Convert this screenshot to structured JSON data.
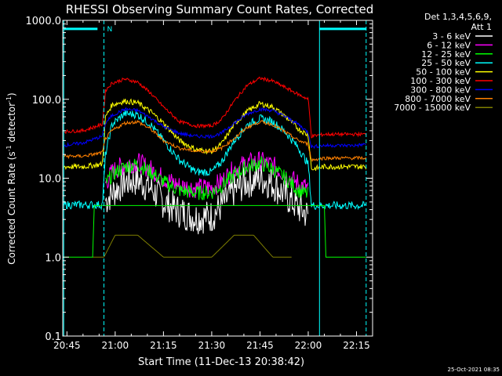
{
  "chart_data": {
    "type": "line",
    "title": "RHESSI Observing Summary Count Rates, Corrected",
    "xlabel": "Start Time (11-Dec-13 20:38:42)",
    "ylabel_main": "Corrected Count Rate (s",
    "ylabel_sup": "-1",
    "ylabel_mid": " detector",
    "ylabel_sup2": "-1",
    "ylabel_end": ")",
    "yscale": "log",
    "ylim": [
      0.1,
      1000
    ],
    "xlim_minutes": [
      -1.3,
      95
    ],
    "xticks": [
      {
        "label": "20:45",
        "min": 0
      },
      {
        "label": "21:00",
        "min": 15
      },
      {
        "label": "21:15",
        "min": 30
      },
      {
        "label": "21:30",
        "min": 45
      },
      {
        "label": "21:45",
        "min": 60
      },
      {
        "label": "22:00",
        "min": 75
      },
      {
        "label": "22:15",
        "min": 90
      }
    ],
    "yticks": [
      {
        "label": "0.1",
        "value": 0.1
      },
      {
        "label": "1.0",
        "value": 1
      },
      {
        "label": "10.0",
        "value": 10
      },
      {
        "label": "100.0",
        "value": 100
      },
      {
        "label": "1000.0",
        "value": 1000
      }
    ],
    "legend_header": [
      "Det 1,3,4,5,6,9,",
      "Att 1"
    ],
    "legend_position": "right",
    "timestamp": "25-Oct-2021 08:35",
    "annotation": "N",
    "series": [
      {
        "name": "3 - 6 keV",
        "color": "#ffffff",
        "x": [
          12,
          14,
          18,
          22,
          26,
          30,
          35,
          40,
          45,
          48,
          52,
          56,
          60,
          64,
          68,
          72,
          75
        ],
        "y": [
          5.2,
          6.5,
          9,
          9.5,
          7.5,
          5.0,
          3.8,
          3.2,
          3.3,
          4.5,
          7,
          9,
          10,
          8.5,
          6,
          4.2,
          3.4
        ]
      },
      {
        "name": "6 - 12 keV",
        "color": "#ff00ff",
        "x": [
          12,
          14,
          18,
          22,
          26,
          30,
          35,
          40,
          45,
          48,
          52,
          56,
          60,
          64,
          68,
          72,
          75
        ],
        "y": [
          8.5,
          12,
          15,
          16,
          13,
          10,
          8,
          7.5,
          7.6,
          9,
          13,
          15.5,
          16.5,
          14.5,
          11,
          8.5,
          7.5
        ]
      },
      {
        "name": "12 - 25 keV",
        "color": "#00ff00",
        "x": [
          12,
          14,
          18,
          22,
          26,
          30,
          35,
          40,
          45,
          48,
          52,
          56,
          60,
          64,
          68,
          72,
          75
        ],
        "y": [
          8.5,
          11,
          14,
          15,
          12,
          9,
          7,
          6.5,
          6.6,
          8,
          11,
          14,
          15.5,
          13,
          10,
          7,
          6.2
        ]
      },
      {
        "name": "25 - 50 keV",
        "color": "#00ffff",
        "x": [
          -1,
          5,
          11,
          12,
          14,
          18,
          22,
          26,
          30,
          35,
          40,
          45,
          48,
          52,
          56,
          60,
          64,
          68,
          72,
          75,
          76,
          80,
          90,
          93
        ],
        "y": [
          4.6,
          4.6,
          4.6,
          20,
          48,
          66,
          64,
          48,
          30,
          17,
          12,
          12,
          16,
          30,
          47,
          57,
          52,
          38,
          24,
          15,
          4.5,
          4.5,
          4.5,
          4.5
        ]
      },
      {
        "name": "50 - 100 keV",
        "color": "#ffff00",
        "x": [
          -1,
          5,
          11,
          12,
          14,
          18,
          22,
          26,
          30,
          35,
          40,
          45,
          48,
          52,
          56,
          60,
          64,
          68,
          72,
          75,
          76,
          80,
          90,
          93
        ],
        "y": [
          14,
          14,
          15,
          60,
          85,
          95,
          90,
          70,
          50,
          30,
          23,
          22,
          27,
          48,
          70,
          88,
          80,
          60,
          42,
          35,
          13,
          14,
          14,
          14
        ]
      },
      {
        "name": "100 - 300 keV",
        "color": "#ff0000",
        "x": [
          -1,
          5,
          11,
          12,
          14,
          18,
          22,
          26,
          30,
          35,
          40,
          45,
          48,
          52,
          56,
          60,
          64,
          68,
          72,
          75,
          76,
          80,
          90,
          93
        ],
        "y": [
          39,
          40,
          48,
          130,
          160,
          180,
          165,
          120,
          80,
          52,
          46,
          46,
          55,
          95,
          150,
          185,
          170,
          140,
          115,
          100,
          34,
          36,
          36,
          36
        ]
      },
      {
        "name": "300 - 800 keV",
        "color": "#0000ff",
        "x": [
          -1,
          5,
          11,
          12,
          14,
          18,
          22,
          26,
          30,
          35,
          40,
          45,
          48,
          52,
          56,
          60,
          64,
          68,
          72,
          75,
          76,
          80,
          90,
          93
        ],
        "y": [
          26,
          28,
          34,
          50,
          62,
          75,
          72,
          58,
          45,
          37,
          34,
          34,
          37,
          50,
          65,
          75,
          72,
          60,
          48,
          38,
          25,
          26,
          26,
          27
        ]
      },
      {
        "name": "800 - 7000 keV",
        "color": "#ff8000",
        "x": [
          -1,
          5,
          11,
          12,
          14,
          18,
          22,
          26,
          30,
          35,
          40,
          45,
          48,
          52,
          56,
          60,
          64,
          68,
          72,
          75,
          76,
          80,
          90,
          93
        ],
        "y": [
          19,
          19,
          21,
          32,
          40,
          50,
          52,
          42,
          30,
          24,
          22,
          22,
          24,
          32,
          44,
          52,
          48,
          38,
          30,
          27,
          17,
          18,
          18,
          18
        ]
      },
      {
        "name": "7000 - 15000 keV",
        "color": "#7f7f00",
        "x": [
          8,
          11.5,
          15,
          22,
          30,
          40,
          45,
          52,
          58,
          64,
          70
        ],
        "y": [
          1,
          1,
          1.9,
          1.9,
          1,
          1,
          1,
          1.9,
          1.9,
          1,
          1
        ]
      }
    ],
    "overlay_lines": [
      {
        "color": "#00ff00",
        "x": [
          -1,
          8,
          8.5,
          75,
          80,
          80.5,
          93
        ],
        "y": [
          1,
          1,
          4.5,
          4.5,
          4.5,
          1,
          1
        ]
      }
    ],
    "attenuator_bars": [
      {
        "color": "#00ffff",
        "x_start": -1,
        "x_end": 9.5,
        "value": 780
      },
      {
        "color": "#00ffff",
        "x_start": 78.5,
        "x_end": 93,
        "value": 780
      }
    ],
    "vertical_markers": [
      {
        "color": "#00ffff",
        "style": "solid",
        "min": -1
      },
      {
        "color": "#00ffff",
        "style": "dashed",
        "min": 11.5
      },
      {
        "color": "#00ffff",
        "style": "solid",
        "min": 78.5
      },
      {
        "color": "#00ffff",
        "style": "dashed",
        "min": 93
      }
    ]
  }
}
